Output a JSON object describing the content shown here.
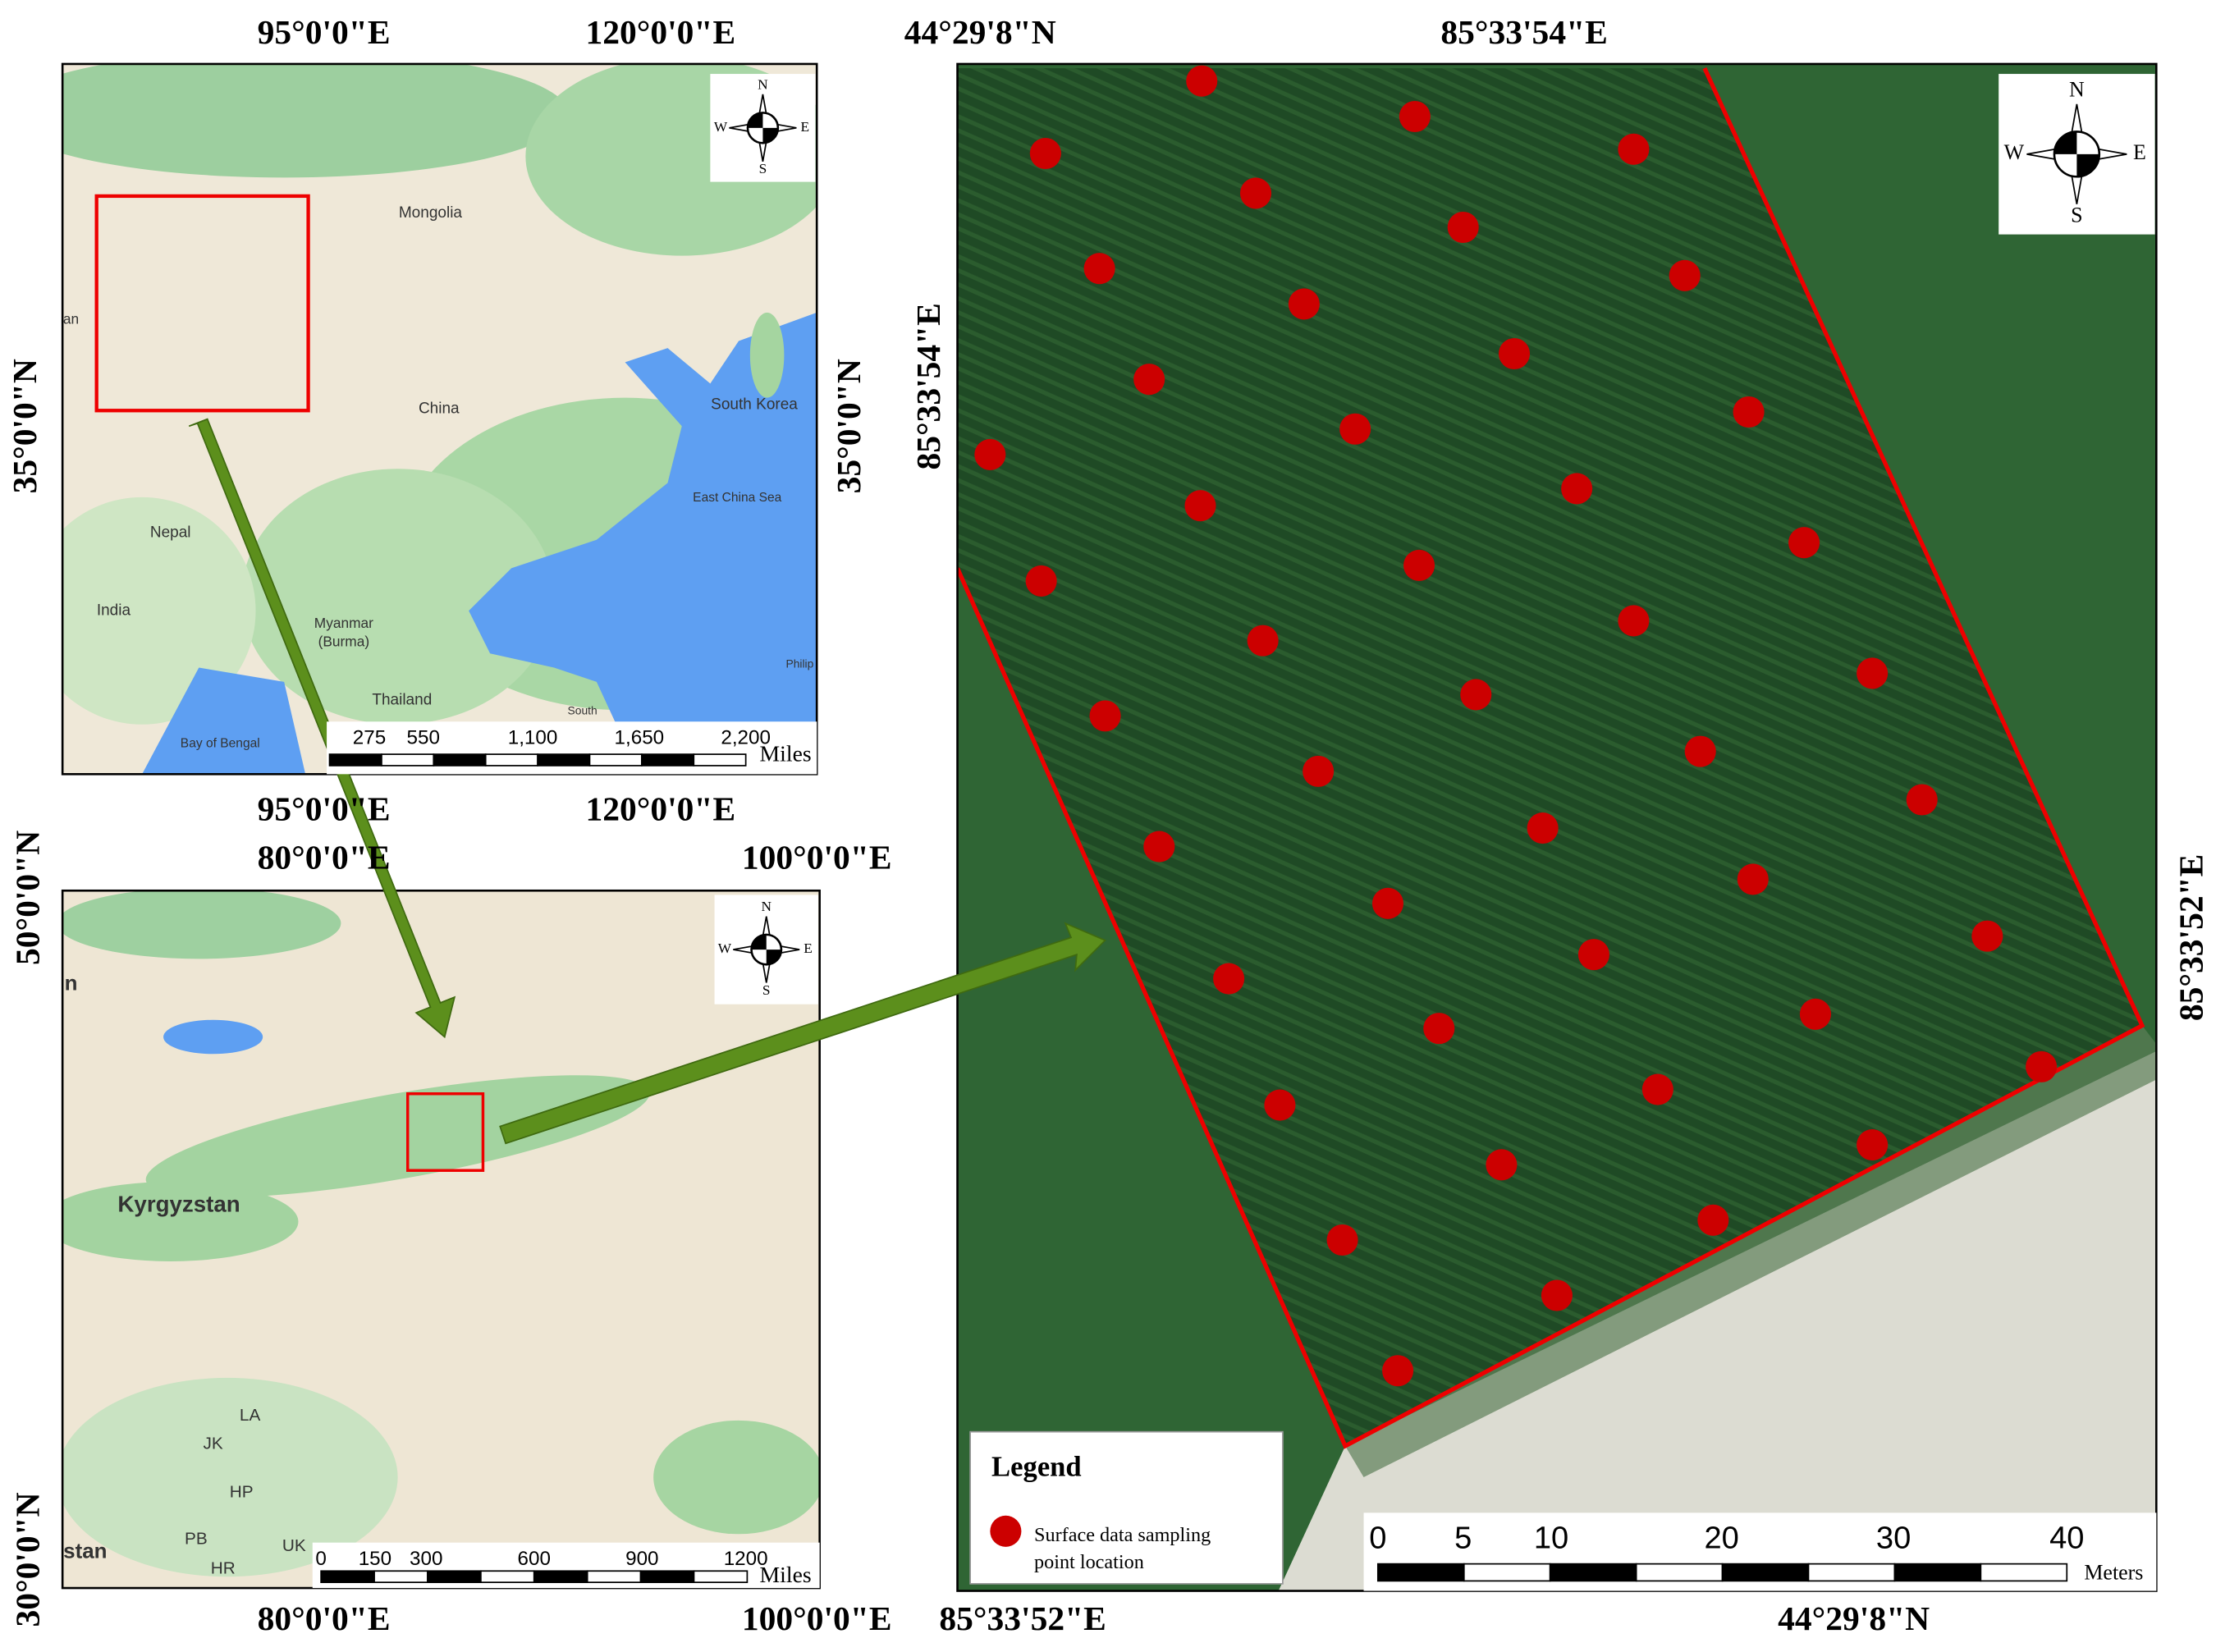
{
  "maps": [
    {
      "top_labels": [
        "95°0'0\"E",
        "120°0'0\"E"
      ],
      "bottom_labels": [
        "95°0'0\"E",
        "120°0'0\"E"
      ],
      "left_labels": [
        "35°0'0\"N"
      ],
      "right_labels": [
        "35°0'0\"N"
      ],
      "places": [
        "Mongolia",
        "China",
        "South Korea",
        "East China Sea",
        "Nepal",
        "India",
        "Myanmar",
        "(Burma)",
        "Thailand",
        "Bay of Bengal",
        "an",
        "South",
        "Philip"
      ],
      "scale": {
        "ticks": [
          "275",
          "550",
          "1,100",
          "1,650",
          "2,200"
        ],
        "unit": "Miles"
      },
      "compass": {
        "n": "N",
        "e": "E",
        "s": "S",
        "w": "W"
      }
    },
    {
      "top_labels": [
        "80°0'0\"E",
        "100°0'0\"E"
      ],
      "bottom_labels": [
        "80°0'0\"E",
        "100°0'0\"E"
      ],
      "left_labels": [
        "50°0'0\"N",
        "30°0'0\"N"
      ],
      "right_labels": [],
      "places": [
        "Kyrgyzstan",
        "LA",
        "JK",
        "HP",
        "PB",
        "HR",
        "UK",
        "stan",
        "n"
      ],
      "scale": {
        "ticks": [
          "0",
          "150",
          "300",
          "600",
          "900",
          "1200"
        ],
        "unit": "Miles"
      },
      "compass": {
        "n": "N",
        "e": "E",
        "s": "S",
        "w": "W"
      }
    },
    {
      "top_labels": [
        "44°29'8\"N",
        "85°33'54\"E"
      ],
      "bottom_labels": [
        "85°33'52\"E",
        "44°29'8\"N"
      ],
      "left_labels": [
        "85°33'54\"E"
      ],
      "right_labels": [
        "85°33'52\"E"
      ],
      "places": [],
      "scale": {
        "ticks": [
          "0",
          "5",
          "10",
          "20",
          "30",
          "40"
        ],
        "unit": "Meters"
      },
      "compass": {
        "n": "N",
        "e": "E",
        "s": "S",
        "w": "W"
      }
    }
  ],
  "legend": {
    "title": "Legend",
    "item_lines": [
      "Surface data sampling",
      "point location"
    ]
  }
}
